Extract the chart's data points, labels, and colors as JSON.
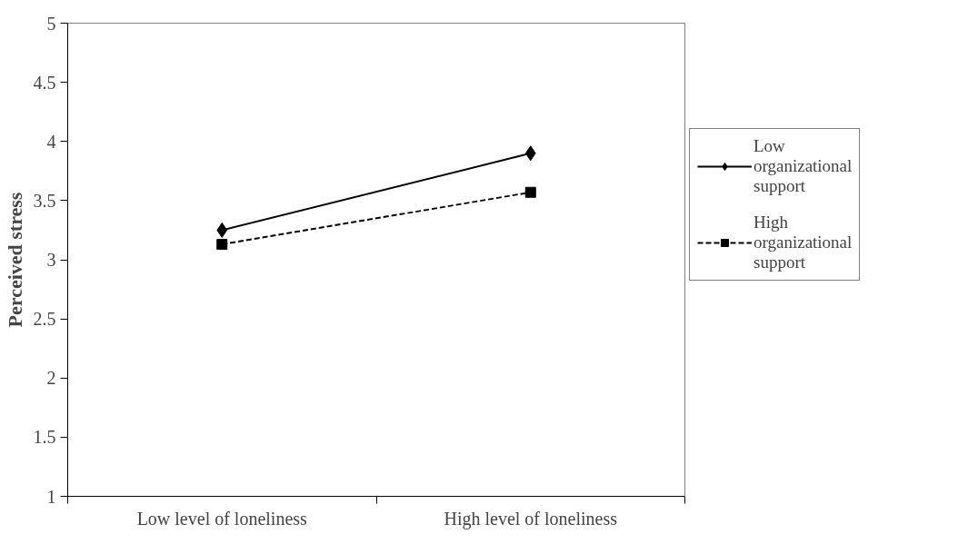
{
  "chart_data": {
    "type": "line",
    "ylabel": "Perceived stress",
    "categories": [
      "Low level of loneliness",
      "High level of loneliness"
    ],
    "series": [
      {
        "name": "Low organizational support",
        "color": "#000000",
        "values": [
          3.25,
          3.9
        ],
        "marker": "diamond",
        "line_style": "solid"
      },
      {
        "name": "High organizational support",
        "color": "#000000",
        "values": [
          3.13,
          3.57
        ],
        "marker": "square",
        "line_style": "dashed"
      }
    ],
    "ylim": [
      1,
      5
    ],
    "yticks": [
      1,
      1.5,
      2,
      2.5,
      3,
      3.5,
      4,
      4.5,
      5
    ],
    "grid": false,
    "legend": "right"
  }
}
